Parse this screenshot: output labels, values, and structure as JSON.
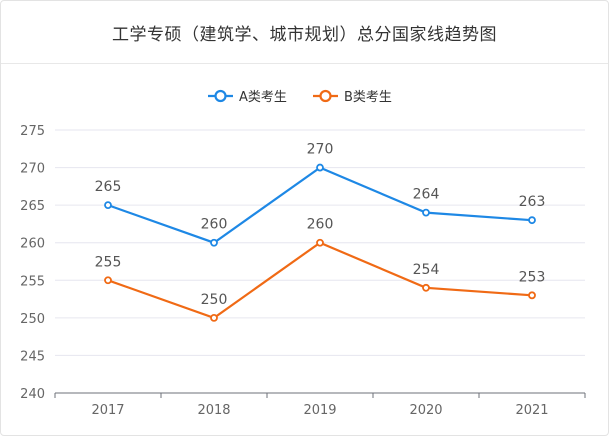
{
  "title": "工学专硕（建筑学、城市规划）总分国家线趋势图",
  "colors": {
    "A": "#1e88e5",
    "B": "#f06a15"
  },
  "chart_data": {
    "type": "line",
    "categories": [
      "2017",
      "2018",
      "2019",
      "2020",
      "2021"
    ],
    "series": [
      {
        "name": "A类考生",
        "values": [
          265,
          260,
          270,
          264,
          263
        ]
      },
      {
        "name": "B类考生",
        "values": [
          255,
          250,
          260,
          254,
          253
        ]
      }
    ],
    "ylim": [
      240,
      275
    ],
    "yticks": [
      240,
      245,
      250,
      255,
      260,
      265,
      270,
      275
    ],
    "grid": true,
    "legend": "top-center"
  }
}
